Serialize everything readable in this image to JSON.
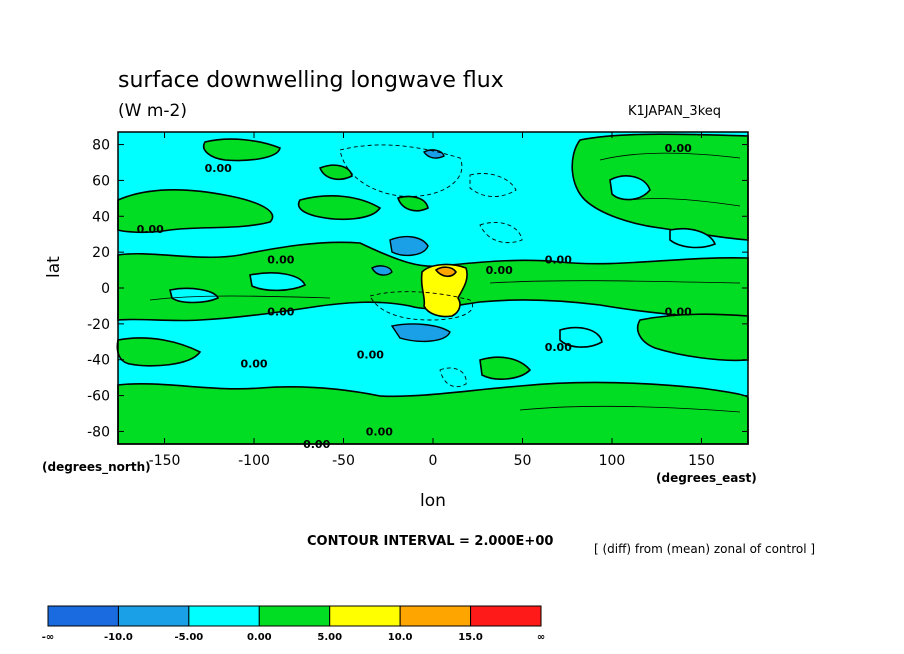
{
  "chart_data": {
    "type": "heatmap",
    "title": "surface downwelling longwave flux",
    "units": "(W m-2)",
    "run_label": "K1JAPAN_3keq",
    "xlabel": "lon",
    "ylabel": "lat",
    "x_unit_note": "(degrees_east)",
    "y_unit_note": "(degrees_north)",
    "x_ticks": [
      -150,
      -100,
      -50,
      0,
      50,
      100,
      150
    ],
    "x_tick_labels": [
      "-150",
      "-100",
      "-50",
      "0",
      "50",
      "100",
      "150"
    ],
    "y_ticks": [
      80,
      60,
      40,
      20,
      0,
      -20,
      -40,
      -60,
      -80
    ],
    "y_tick_labels": [
      "80",
      "60",
      "40",
      "20",
      "0",
      "-20",
      "-40",
      "-60",
      "-80"
    ],
    "xlim": [
      -176,
      176
    ],
    "ylim": [
      -87,
      87
    ],
    "contour_interval_text": "CONTOUR INTERVAL = 2.000E+00",
    "description_text": "[ (diff) from (mean) zonal of control ]",
    "contour_labels": [
      {
        "text": "0.00",
        "lon": -120,
        "lat": 67
      },
      {
        "text": "0.00",
        "lon": -158,
        "lat": 33
      },
      {
        "text": "0.00",
        "lon": -85,
        "lat": 16
      },
      {
        "text": "0.00",
        "lon": -85,
        "lat": -13
      },
      {
        "text": "0.00",
        "lon": -100,
        "lat": -42
      },
      {
        "text": "0.00",
        "lon": -35,
        "lat": -37
      },
      {
        "text": "0.00",
        "lon": -30,
        "lat": -80
      },
      {
        "text": "0.00",
        "lon": -65,
        "lat": -87
      },
      {
        "text": "0.00",
        "lon": 37,
        "lat": 10
      },
      {
        "text": "0.00",
        "lon": 70,
        "lat": 16
      },
      {
        "text": "0.00",
        "lon": 137,
        "lat": 78
      },
      {
        "text": "0.00",
        "lon": 137,
        "lat": -13
      },
      {
        "text": "0.00",
        "lon": 70,
        "lat": -33
      }
    ],
    "levels": [
      {
        "range": "-inf to -10.0",
        "color": "#1a6be0"
      },
      {
        "range": "-10.0 to -5.00",
        "color": "#1aa0e6"
      },
      {
        "range": "-5.00 to 0.00",
        "color": "#00ffff"
      },
      {
        "range": "0.00 to 5.00",
        "color": "#00dd22"
      },
      {
        "range": "5.00 to 10.0",
        "color": "#ffff00"
      },
      {
        "range": "10.0 to 15.0",
        "color": "#ffa500"
      },
      {
        "range": "15.0 to inf",
        "color": "#ff1a1a"
      }
    ],
    "colorbar_labels": [
      "-∞",
      "-10.0",
      "-5.00",
      "0.00",
      "5.00",
      "10.0",
      "15.0",
      "∞"
    ]
  }
}
